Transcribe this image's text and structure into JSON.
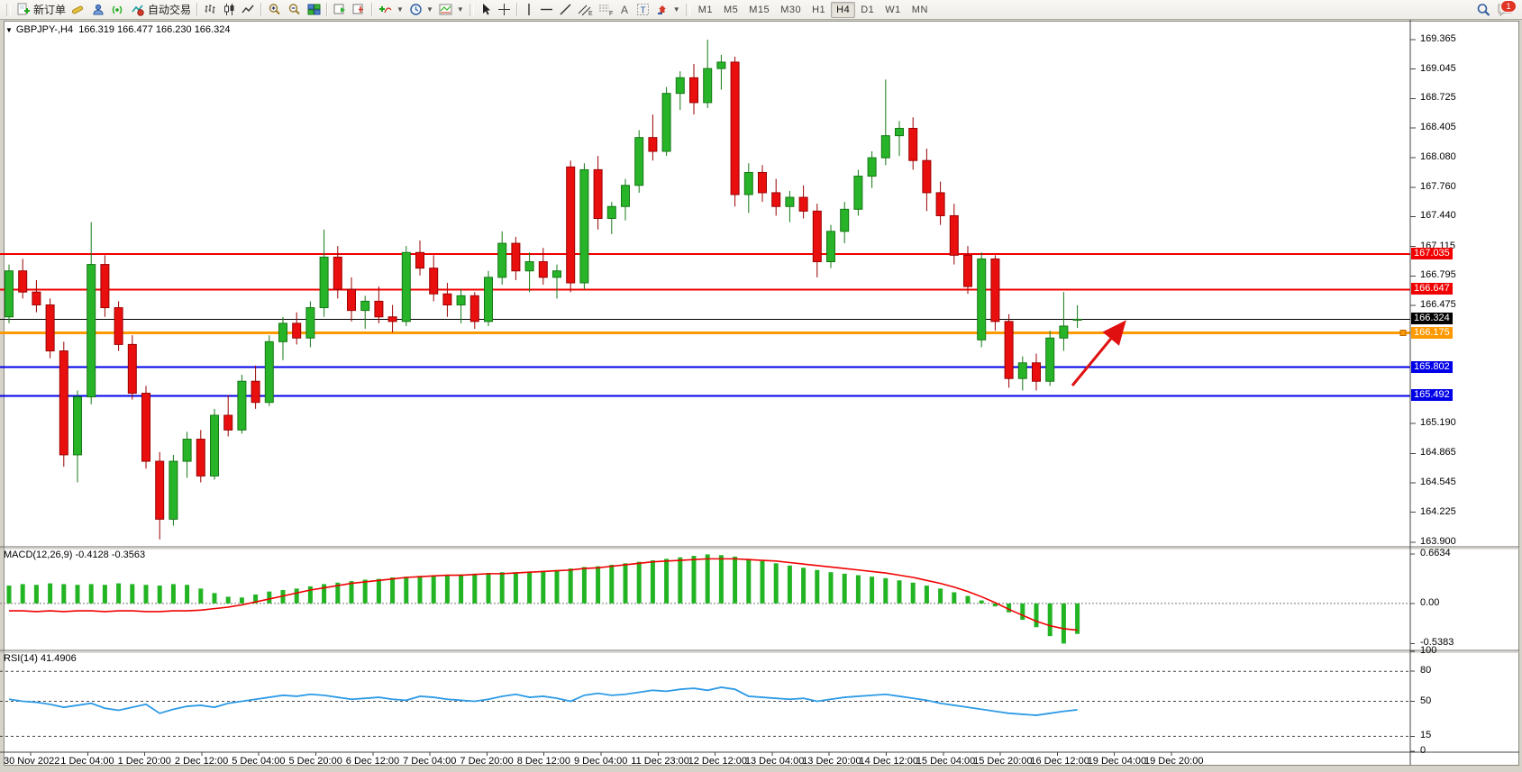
{
  "toolbar": {
    "new_order_label": "新订单",
    "auto_trading_label": "自动交易",
    "timeframes": [
      "M1",
      "M5",
      "M15",
      "M30",
      "H1",
      "H4",
      "D1",
      "W1",
      "MN"
    ],
    "active_timeframe": "H4",
    "notification_count": "1",
    "icons": [
      "new-order",
      "chart-object",
      "depth-of-market",
      "signals",
      "auto-trading",
      "bar-chart",
      "candlestick-chart",
      "line-chart",
      "zoom-in",
      "zoom-out",
      "tile-windows",
      "auto-scroll",
      "chart-shift",
      "indicators",
      "periods",
      "templates",
      "cursor",
      "crosshair",
      "vertical-line",
      "horizontal-line",
      "trendline",
      "equidistant-channel",
      "fibonacci",
      "text",
      "text-label",
      "arrows",
      "search",
      "chat"
    ]
  },
  "header": {
    "symbol_period": "GBPJPY-,H4",
    "ohlc": "166.319 166.477 166.230 166.324"
  },
  "indicators": {
    "macd_label": "MACD(12,26,9)",
    "macd_values": "-0.4128 -0.3563",
    "rsi_label": "RSI(14)",
    "rsi_value": "41.4906"
  },
  "chart_data": [
    {
      "type": "candlestick",
      "symbol": "GBPJPY-",
      "timeframe": "H4",
      "current_bar": {
        "open": 166.319,
        "high": 166.477,
        "low": 166.23,
        "close": 166.324
      },
      "ylim": [
        163.85,
        169.58
      ],
      "axis_ticks": [
        169.365,
        169.045,
        168.725,
        168.405,
        168.08,
        167.76,
        167.44,
        167.115,
        166.795,
        166.475,
        165.19,
        164.865,
        164.545,
        164.225,
        163.9
      ],
      "hlines": [
        {
          "price": 167.035,
          "label": "167.035",
          "color": "#f00000",
          "width": 2
        },
        {
          "price": 166.647,
          "label": "166.647",
          "color": "#f00000",
          "width": 2
        },
        {
          "price": 166.324,
          "label": "166.324",
          "color": "#000000",
          "width": 1
        },
        {
          "price": 166.175,
          "label": "166.175",
          "color": "#ff9900",
          "width": 3
        },
        {
          "price": 165.802,
          "label": "165.802",
          "color": "#0000e8",
          "width": 2
        },
        {
          "price": 165.492,
          "label": "165.492",
          "color": "#0000e8",
          "width": 2
        }
      ],
      "time_labels": [
        "30 Nov 2022",
        "1 Dec 04:00",
        "1 Dec 20:00",
        "2 Dec 12:00",
        "5 Dec 04:00",
        "5 Dec 20:00",
        "6 Dec 12:00",
        "7 Dec 04:00",
        "7 Dec 20:00",
        "8 Dec 12:00",
        "9 Dec 04:00",
        "11 Dec 23:00",
        "12 Dec 12:00",
        "13 Dec 04:00",
        "13 Dec 20:00",
        "14 Dec 12:00",
        "15 Dec 04:00",
        "15 Dec 20:00",
        "16 Dec 12:00",
        "19 Dec 04:00",
        "19 Dec 20:00"
      ],
      "colors": {
        "bull": "#28b428",
        "bull_border": "#157815",
        "bear": "#ea0f0f",
        "bear_border": "#9b0000",
        "arrow": "#e01010"
      },
      "annotations": [
        {
          "type": "arrow",
          "from": [
            1190,
            428
          ],
          "to": [
            1246,
            360
          ],
          "color": "#e01010"
        }
      ],
      "candles": [
        [
          166.35,
          166.92,
          166.28,
          166.85
        ],
        [
          166.85,
          166.98,
          166.55,
          166.62
        ],
        [
          166.62,
          166.75,
          166.4,
          166.48
        ],
        [
          166.48,
          166.55,
          165.9,
          165.98
        ],
        [
          165.98,
          166.08,
          164.72,
          164.85
        ],
        [
          164.85,
          165.55,
          164.55,
          165.48
        ],
        [
          165.48,
          167.38,
          165.4,
          166.92
        ],
        [
          166.92,
          167.02,
          166.35,
          166.45
        ],
        [
          166.45,
          166.52,
          165.98,
          166.05
        ],
        [
          166.05,
          166.15,
          165.45,
          165.52
        ],
        [
          165.52,
          165.6,
          164.7,
          164.78
        ],
        [
          164.78,
          164.88,
          163.93,
          164.15
        ],
        [
          164.15,
          164.85,
          164.08,
          164.78
        ],
        [
          164.78,
          165.1,
          164.6,
          165.02
        ],
        [
          165.02,
          165.12,
          164.55,
          164.62
        ],
        [
          164.62,
          165.35,
          164.58,
          165.28
        ],
        [
          165.28,
          165.5,
          165.05,
          165.12
        ],
        [
          165.12,
          165.72,
          165.08,
          165.65
        ],
        [
          165.65,
          165.82,
          165.35,
          165.42
        ],
        [
          165.42,
          166.15,
          165.38,
          166.08
        ],
        [
          166.08,
          166.35,
          165.88,
          166.28
        ],
        [
          166.28,
          166.4,
          166.05,
          166.12
        ],
        [
          166.12,
          166.52,
          166.02,
          166.45
        ],
        [
          166.45,
          167.3,
          166.35,
          167.0
        ],
        [
          167.0,
          167.12,
          166.55,
          166.65
        ],
        [
          166.65,
          166.78,
          166.3,
          166.42
        ],
        [
          166.42,
          166.58,
          166.22,
          166.52
        ],
        [
          166.52,
          166.68,
          166.28,
          166.35
        ],
        [
          166.35,
          166.48,
          166.18,
          166.3
        ],
        [
          166.3,
          167.12,
          166.25,
          167.05
        ],
        [
          167.05,
          167.18,
          166.8,
          166.88
        ],
        [
          166.88,
          167.02,
          166.52,
          166.6
        ],
        [
          166.6,
          166.72,
          166.35,
          166.48
        ],
        [
          166.48,
          166.65,
          166.28,
          166.58
        ],
        [
          166.58,
          166.62,
          166.22,
          166.3
        ],
        [
          166.3,
          166.85,
          166.25,
          166.78
        ],
        [
          166.78,
          167.28,
          166.7,
          167.15
        ],
        [
          167.15,
          167.22,
          166.75,
          166.85
        ],
        [
          166.85,
          167.05,
          166.62,
          166.95
        ],
        [
          166.95,
          167.1,
          166.7,
          166.78
        ],
        [
          166.78,
          166.92,
          166.55,
          166.85
        ],
        [
          167.98,
          168.05,
          166.62,
          166.72
        ],
        [
          166.72,
          168.02,
          166.65,
          167.95
        ],
        [
          167.95,
          168.1,
          167.3,
          167.42
        ],
        [
          167.42,
          167.6,
          167.25,
          167.55
        ],
        [
          167.55,
          167.85,
          167.4,
          167.78
        ],
        [
          167.78,
          168.38,
          167.7,
          168.3
        ],
        [
          168.3,
          168.55,
          168.05,
          168.15
        ],
        [
          168.15,
          168.85,
          168.1,
          168.78
        ],
        [
          168.78,
          169.02,
          168.6,
          168.95
        ],
        [
          168.95,
          169.1,
          168.55,
          168.68
        ],
        [
          168.68,
          169.365,
          168.62,
          169.05
        ],
        [
          169.05,
          169.2,
          168.82,
          169.12
        ],
        [
          169.12,
          169.18,
          167.55,
          167.68
        ],
        [
          167.68,
          168.02,
          167.48,
          167.92
        ],
        [
          167.92,
          168.0,
          167.6,
          167.7
        ],
        [
          167.7,
          167.85,
          167.45,
          167.55
        ],
        [
          167.55,
          167.72,
          167.38,
          167.65
        ],
        [
          167.65,
          167.78,
          167.42,
          167.5
        ],
        [
          167.5,
          167.58,
          166.78,
          166.95
        ],
        [
          166.95,
          167.35,
          166.88,
          167.28
        ],
        [
          167.28,
          167.6,
          167.15,
          167.52
        ],
        [
          167.52,
          167.95,
          167.45,
          167.88
        ],
        [
          167.88,
          168.15,
          167.75,
          168.08
        ],
        [
          168.08,
          168.93,
          168.0,
          168.32
        ],
        [
          168.32,
          168.48,
          168.1,
          168.4
        ],
        [
          168.4,
          168.52,
          167.95,
          168.05
        ],
        [
          168.05,
          168.18,
          167.5,
          167.7
        ],
        [
          167.7,
          167.82,
          167.35,
          167.45
        ],
        [
          167.45,
          167.58,
          166.92,
          167.02
        ],
        [
          167.02,
          167.12,
          166.6,
          166.68
        ],
        [
          166.1,
          167.05,
          166.02,
          166.98
        ],
        [
          166.98,
          167.02,
          166.2,
          166.3
        ],
        [
          166.3,
          166.38,
          165.58,
          165.68
        ],
        [
          165.68,
          165.92,
          165.55,
          165.85
        ],
        [
          165.85,
          165.95,
          165.55,
          165.65
        ],
        [
          165.65,
          166.2,
          165.6,
          166.12
        ],
        [
          166.12,
          166.62,
          165.98,
          166.25
        ],
        [
          166.319,
          166.477,
          166.23,
          166.324
        ]
      ]
    },
    {
      "type": "macd",
      "label": "MACD(12,26,9)",
      "current_values": [
        -0.4128,
        -0.3563
      ],
      "scale_ticks": [
        {
          "v": 0.6634,
          "t": "0.6634"
        },
        {
          "v": 0.0,
          "t": "0.00"
        },
        {
          "v": -0.5383,
          "t": "-0.5383"
        }
      ],
      "ylim": [
        0.75,
        -0.62
      ],
      "colors": {
        "histogram": "#22b422",
        "signal": "#f00000"
      },
      "histogram": [
        0.24,
        0.26,
        0.25,
        0.27,
        0.26,
        0.25,
        0.26,
        0.25,
        0.27,
        0.26,
        0.25,
        0.24,
        0.26,
        0.25,
        0.2,
        0.14,
        0.09,
        0.08,
        0.12,
        0.16,
        0.18,
        0.2,
        0.23,
        0.26,
        0.28,
        0.3,
        0.32,
        0.33,
        0.35,
        0.36,
        0.37,
        0.38,
        0.38,
        0.39,
        0.4,
        0.41,
        0.42,
        0.42,
        0.43,
        0.44,
        0.45,
        0.47,
        0.49,
        0.5,
        0.52,
        0.54,
        0.56,
        0.58,
        0.6,
        0.62,
        0.64,
        0.66,
        0.65,
        0.63,
        0.6,
        0.57,
        0.54,
        0.51,
        0.48,
        0.45,
        0.42,
        0.4,
        0.38,
        0.36,
        0.34,
        0.31,
        0.28,
        0.24,
        0.2,
        0.15,
        0.1,
        0.04,
        -0.04,
        -0.12,
        -0.22,
        -0.32,
        -0.44,
        -0.54,
        -0.41
      ],
      "signal": [
        -0.1,
        -0.1,
        -0.11,
        -0.1,
        -0.11,
        -0.1,
        -0.1,
        -0.11,
        -0.1,
        -0.1,
        -0.11,
        -0.11,
        -0.1,
        -0.1,
        -0.09,
        -0.07,
        -0.05,
        -0.02,
        0.02,
        0.06,
        0.1,
        0.14,
        0.18,
        0.21,
        0.24,
        0.27,
        0.29,
        0.31,
        0.33,
        0.35,
        0.36,
        0.37,
        0.38,
        0.38,
        0.39,
        0.4,
        0.4,
        0.41,
        0.42,
        0.43,
        0.44,
        0.45,
        0.47,
        0.48,
        0.5,
        0.52,
        0.54,
        0.56,
        0.57,
        0.58,
        0.59,
        0.6,
        0.6,
        0.6,
        0.59,
        0.58,
        0.57,
        0.55,
        0.53,
        0.51,
        0.49,
        0.47,
        0.45,
        0.43,
        0.41,
        0.38,
        0.35,
        0.31,
        0.27,
        0.22,
        0.16,
        0.09,
        0.01,
        -0.08,
        -0.16,
        -0.24,
        -0.3,
        -0.34,
        -0.36
      ]
    },
    {
      "type": "rsi",
      "label": "RSI(14)",
      "current_value": 41.4906,
      "levels": [
        80,
        50,
        15
      ],
      "scale_ticks": [
        {
          "v": 100,
          "t": "100"
        },
        {
          "v": 80,
          "t": "80"
        },
        {
          "v": 50,
          "t": "50"
        },
        {
          "v": 15,
          "t": "15"
        },
        {
          "v": 0,
          "t": "0"
        }
      ],
      "ylim": [
        100,
        0
      ],
      "colors": {
        "line": "#2e9be6"
      },
      "line": [
        52,
        50,
        49,
        47,
        44,
        46,
        48,
        43,
        41,
        44,
        47,
        38,
        42,
        45,
        46,
        44,
        48,
        50,
        52,
        54,
        56,
        55,
        57,
        56,
        54,
        52,
        53,
        54,
        52,
        51,
        55,
        54,
        52,
        51,
        50,
        52,
        55,
        57,
        54,
        55,
        53,
        50,
        56,
        58,
        56,
        57,
        59,
        61,
        60,
        62,
        63,
        61,
        64,
        62,
        55,
        54,
        53,
        52,
        53,
        50,
        52,
        54,
        55,
        56,
        57,
        55,
        53,
        51,
        48,
        46,
        44,
        42,
        40,
        38,
        37,
        36,
        38,
        40,
        41.49
      ]
    }
  ]
}
